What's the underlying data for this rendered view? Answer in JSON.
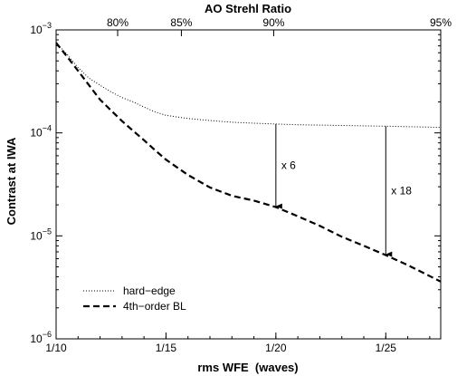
{
  "chart_data": {
    "type": "line",
    "title": "AO Strehl Ratio",
    "xlabel": "rms WFE  (waves)",
    "ylabel": "Contrast at IWA",
    "x_scale": "reciprocal",
    "x_ticks": [
      "1/10",
      "1/15",
      "1/20",
      "1/25"
    ],
    "xlim": [
      "1/10",
      "1/27.5"
    ],
    "y_scale": "log",
    "ylim": [
      1e-06,
      0.001
    ],
    "y_ticks": [
      {
        "base": "10",
        "exp": "−3"
      },
      {
        "base": "10",
        "exp": "−4"
      },
      {
        "base": "10",
        "exp": "−5"
      },
      {
        "base": "10",
        "exp": "−6"
      }
    ],
    "top_axis": {
      "label": "AO Strehl Ratio",
      "ticks": [
        {
          "label": "80%",
          "x": "1/12.8"
        },
        {
          "label": "85%",
          "x": "1/15.7"
        },
        {
          "label": "90%",
          "x": "1/19.9"
        },
        {
          "label": "95%",
          "x": "1/27.5"
        }
      ]
    },
    "series": [
      {
        "name": "hard−edge",
        "style": "dotted",
        "color": "#000000",
        "x": [
          "1/10",
          "1/10.5",
          "1/11",
          "1/11.5",
          "1/12",
          "1/12.5",
          "1/13",
          "1/13.5",
          "1/14",
          "1/14.5",
          "1/15",
          "1/16",
          "1/17",
          "1/18",
          "1/19",
          "1/20",
          "1/21",
          "1/22",
          "1/23",
          "1/24",
          "1/25",
          "1/26",
          "1/27.5"
        ],
        "y": [
          0.00075,
          0.00058,
          0.00043,
          0.00034,
          0.00029,
          0.00025,
          0.00022,
          0.0002,
          0.000178,
          0.00016,
          0.000148,
          0.000138,
          0.000132,
          0.000127,
          0.000124,
          0.000122,
          0.00012,
          0.000119,
          0.000118,
          0.000117,
          0.000116,
          0.000115,
          0.000113
        ]
      },
      {
        "name": "4th−order BL",
        "style": "dashed",
        "color": "#000000",
        "x": [
          "1/10",
          "1/10.5",
          "1/11",
          "1/11.5",
          "1/12",
          "1/12.5",
          "1/13",
          "1/13.5",
          "1/14",
          "1/14.5",
          "1/15",
          "1/16",
          "1/17",
          "1/18",
          "1/19",
          "1/20",
          "1/21",
          "1/22",
          "1/23",
          "1/24",
          "1/25",
          "1/26",
          "1/27.5"
        ],
        "y": [
          0.00075,
          0.00055,
          0.0004,
          0.00029,
          0.00021,
          0.000165,
          0.00013,
          0.000105,
          8.5e-05,
          6.8e-05,
          5.5e-05,
          3.9e-05,
          2.95e-05,
          2.45e-05,
          2.2e-05,
          1.9e-05,
          1.55e-05,
          1.25e-05,
          9.8e-06,
          8e-06,
          6.5e-06,
          5.2e-06,
          3.6e-06
        ]
      }
    ],
    "annotations": [
      {
        "text": "x 6",
        "x": "1/20",
        "y_from": 0.000122,
        "y_to": 1.9e-05
      },
      {
        "text": "x 18",
        "x": "1/25",
        "y_from": 0.000116,
        "y_to": 6.5e-06
      }
    ],
    "legend_position": "bottom-left",
    "grid": false
  }
}
